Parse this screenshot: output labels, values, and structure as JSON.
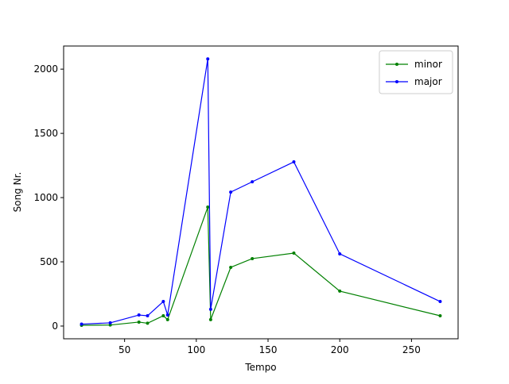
{
  "chart_data": {
    "type": "line",
    "xlabel": "Tempo",
    "ylabel": "Song Nr.",
    "x": [
      20,
      40,
      60,
      66,
      77,
      80,
      108,
      110,
      124,
      139,
      168,
      200,
      270
    ],
    "series": [
      {
        "name": "minor",
        "color": "green",
        "values": [
          6,
          8,
          31,
          22,
          80,
          50,
          926,
          50,
          457,
          525,
          568,
          272,
          80
        ]
      },
      {
        "name": "major",
        "color": "blue",
        "values": [
          15,
          25,
          86,
          80,
          191,
          86,
          2080,
          130,
          1043,
          1123,
          1278,
          562,
          191
        ]
      }
    ],
    "xlim": [
      7.5,
      282.5
    ],
    "ylim": [
      -99,
      2180
    ],
    "xticks": [
      50,
      100,
      150,
      200,
      250
    ],
    "yticks": [
      0,
      500,
      1000,
      1500,
      2000
    ],
    "legend": "upper right"
  }
}
